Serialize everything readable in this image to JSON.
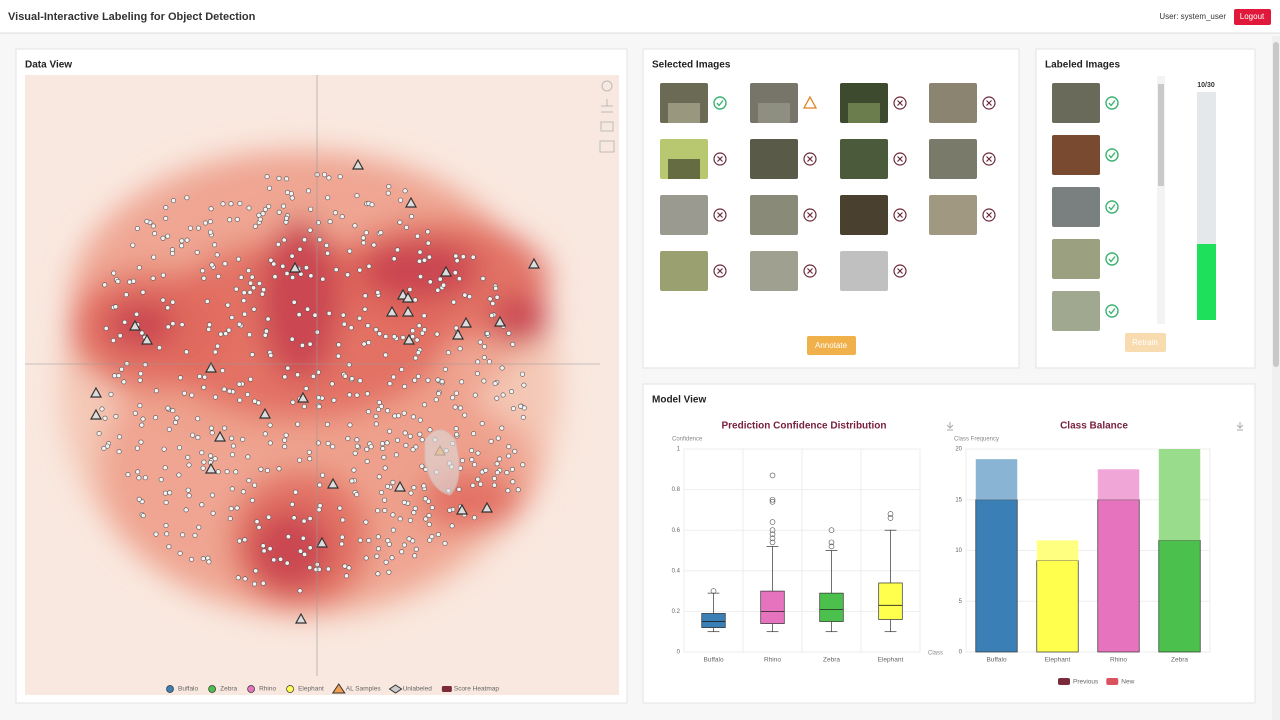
{
  "header": {
    "title": "Visual-Interactive Labeling for Object Detection",
    "user": "User: system_user",
    "logout": "Logout"
  },
  "data_view": {
    "title": "Data View",
    "legend": [
      "Buffalo",
      "Zebra",
      "Rhino",
      "Elephant",
      "AL Samples",
      "Unlabeled",
      "Score Heatmap"
    ]
  },
  "selected_images": {
    "title": "Selected Images",
    "button": "Annotate"
  },
  "labeled_images": {
    "title": "Labeled Images",
    "progress": "10/30",
    "button": "Retrain"
  },
  "model_view": {
    "title": "Model View"
  },
  "chart_data": [
    {
      "type": "box",
      "title": "Prediction Confidence Distribution",
      "y_label": "Confidence",
      "x_label": "Class",
      "categories": [
        "Buffalo",
        "Rhino",
        "Zebra",
        "Elephant"
      ],
      "colors": [
        "#3a7fb5",
        "#e673bd",
        "#4cc04c",
        "#ffff4d"
      ],
      "boxes": [
        {
          "min": 0.1,
          "q1": 0.12,
          "median": 0.15,
          "q3": 0.19,
          "max": 0.29,
          "outliers": [
            0.3
          ]
        },
        {
          "min": 0.1,
          "q1": 0.14,
          "median": 0.2,
          "q3": 0.3,
          "max": 0.52,
          "outliers": [
            0.87,
            0.75,
            0.74,
            0.64,
            0.6,
            0.58,
            0.56,
            0.54
          ]
        },
        {
          "min": 0.1,
          "q1": 0.15,
          "median": 0.21,
          "q3": 0.29,
          "max": 0.5,
          "outliers": [
            0.6,
            0.54,
            0.52
          ]
        },
        {
          "min": 0.1,
          "q1": 0.16,
          "median": 0.23,
          "q3": 0.34,
          "max": 0.6,
          "outliers": [
            0.68,
            0.66
          ]
        }
      ],
      "ylim": [
        0,
        1
      ],
      "yticks": [
        0,
        0.2,
        0.4,
        0.6,
        0.8,
        1
      ],
      "grid": true
    },
    {
      "type": "stacked_bar",
      "title": "Class Balance",
      "y_label": "Class Frequency",
      "categories": [
        "Buffalo",
        "Elephant",
        "Rhino",
        "Zebra"
      ],
      "series": [
        {
          "name": "Previous",
          "color": "#7a2a3a",
          "colors": [
            "#3a7fb5",
            "#ffff4d",
            "#e673bd",
            "#4cc04c"
          ],
          "values": [
            15,
            9,
            15,
            11
          ]
        },
        {
          "name": "New",
          "color": "#d9535f",
          "colors": [
            "#8ab4d4",
            "#ffff80",
            "#f0a6d6",
            "#98dc8c"
          ],
          "values": [
            4,
            2,
            3,
            9
          ]
        }
      ],
      "ylim": [
        0,
        20
      ],
      "yticks": [
        0,
        5,
        10,
        15,
        20
      ],
      "grid": true
    }
  ]
}
